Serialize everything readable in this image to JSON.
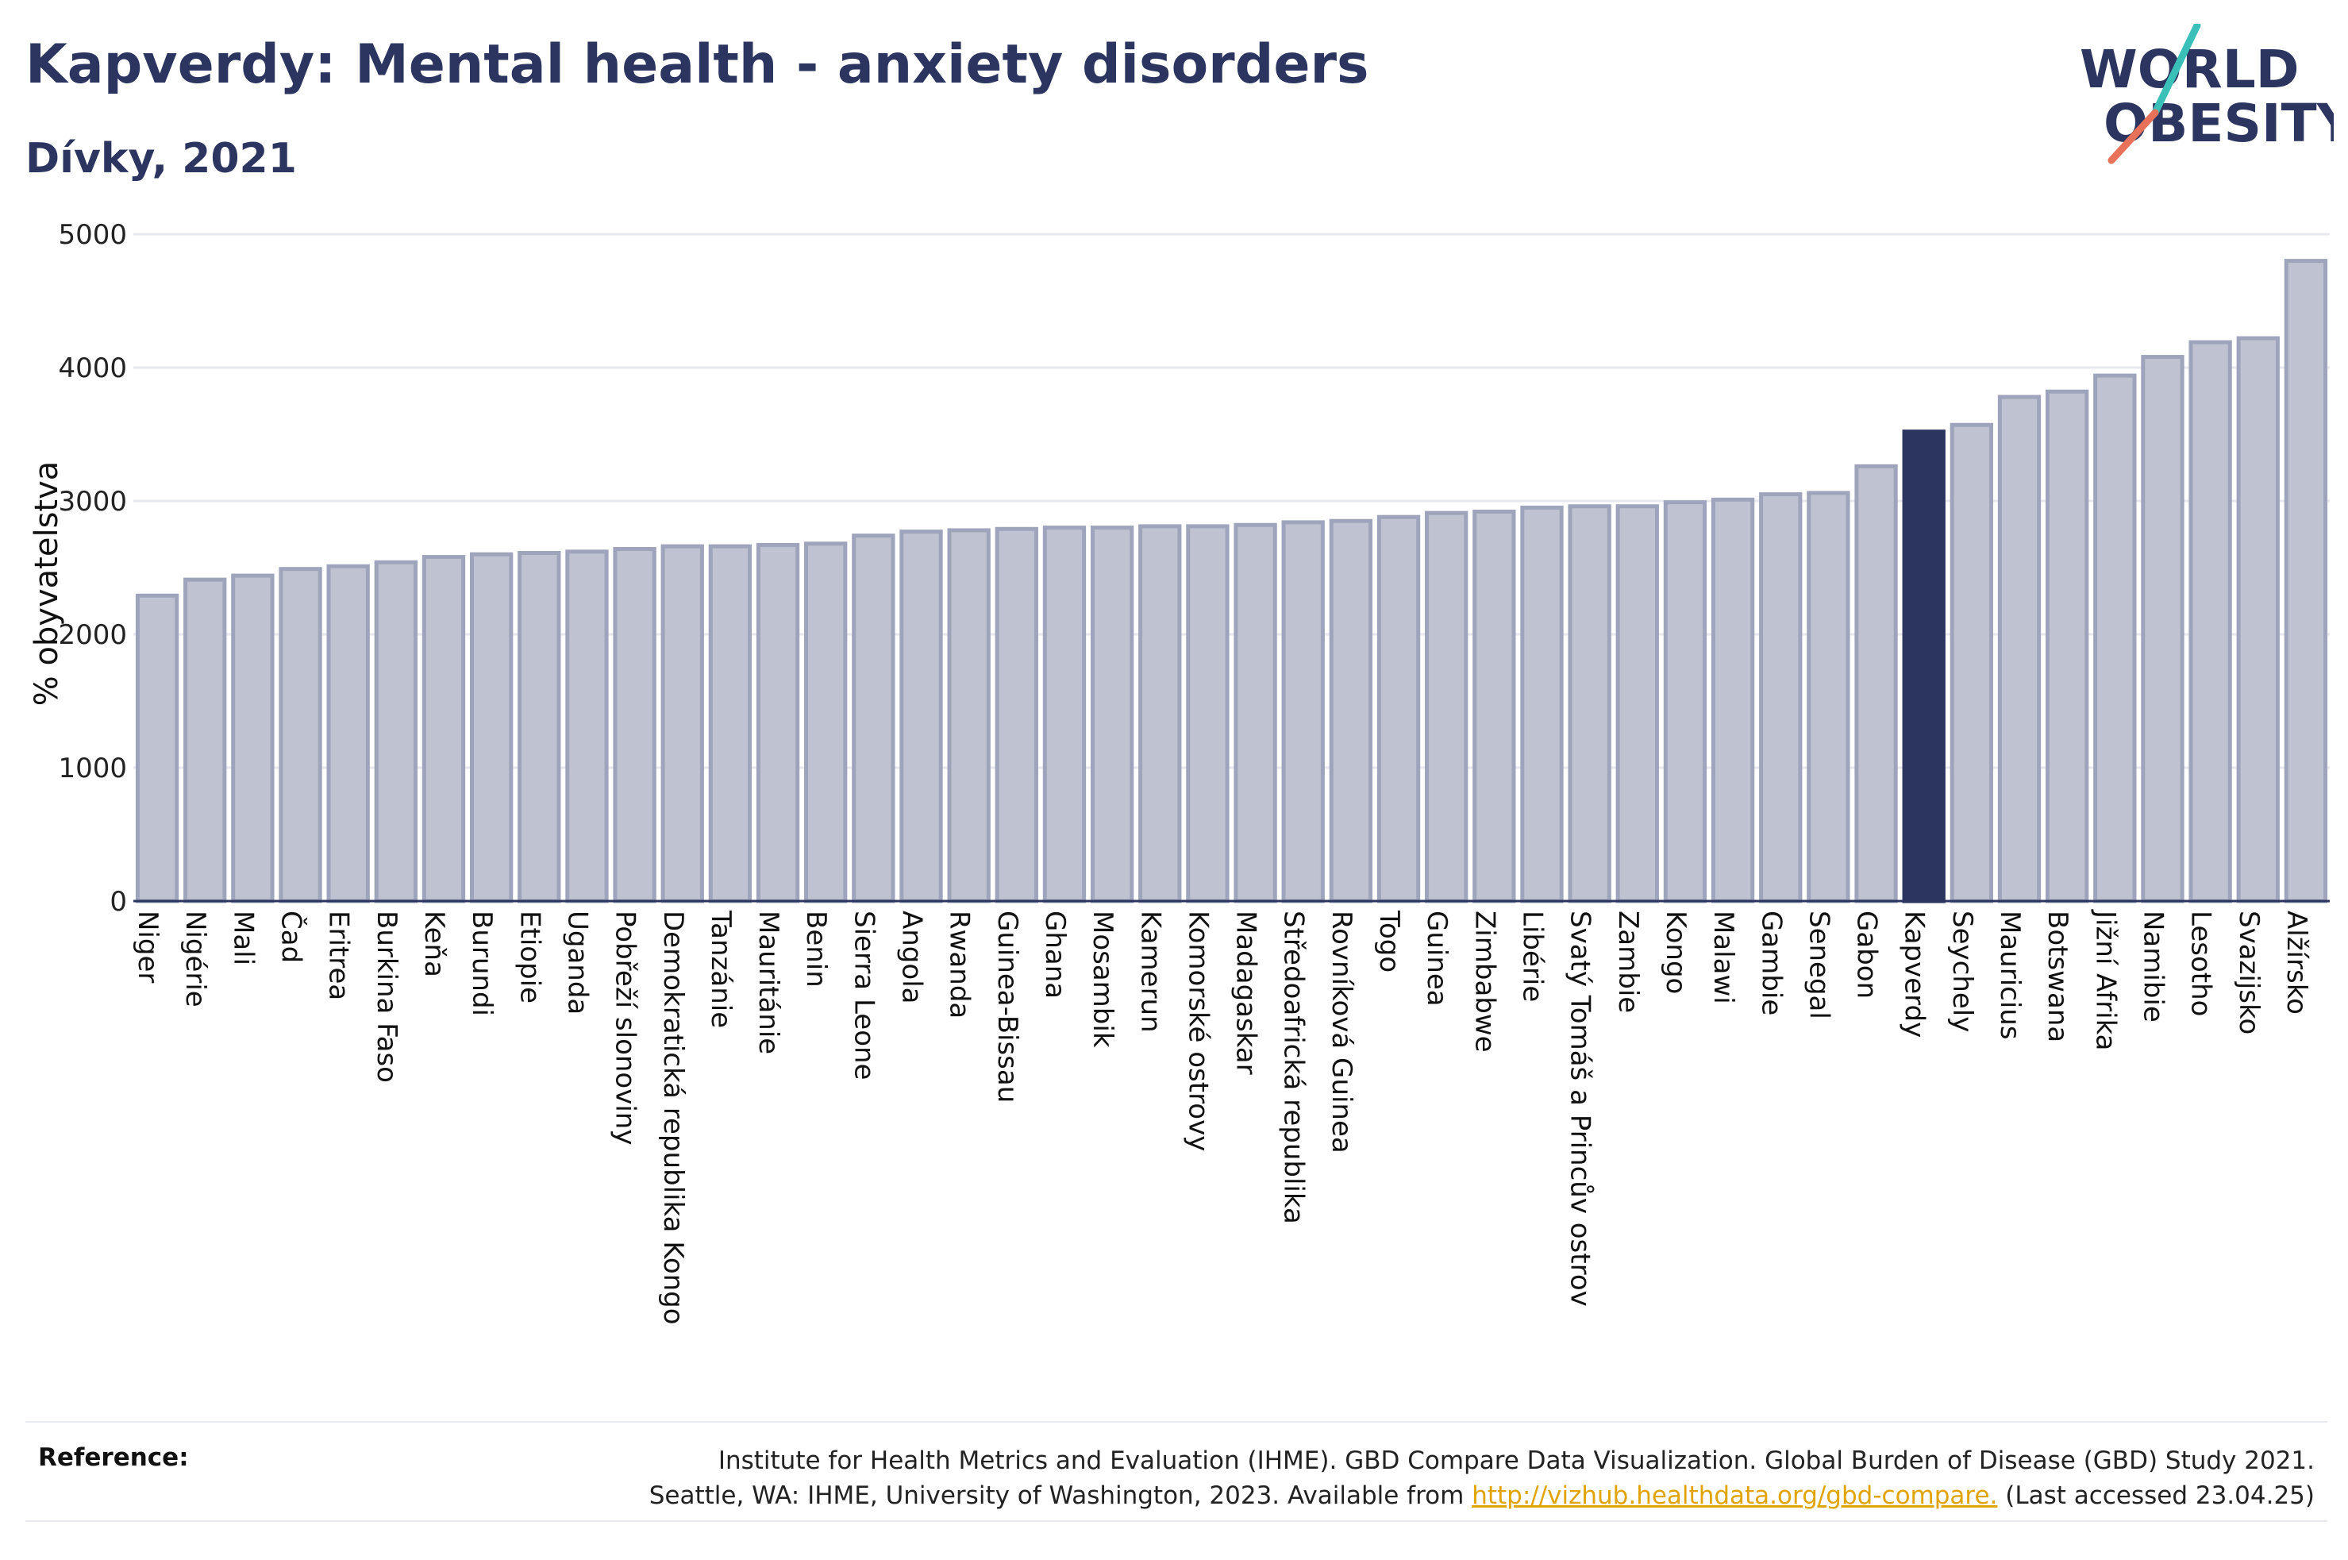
{
  "header": {
    "title": "Kapverdy: Mental health - anxiety disorders",
    "subtitle": "Dívky, 2021"
  },
  "logo": {
    "line1": "WORLD",
    "line2": "OBESITY",
    "icon": "world-obesity-logo",
    "accent_teal": "#3bbfb9",
    "accent_coral": "#e8715a"
  },
  "colors": {
    "bar": "#bfc3d1",
    "bar_stroke": "#9ea4bb",
    "highlight": "#2b3560",
    "text": "#2b3560"
  },
  "chart_data": {
    "type": "bar",
    "title": "Kapverdy: Mental health - anxiety disorders",
    "subtitle": "Dívky, 2021",
    "ylabel": "% obyvatelstva",
    "xlabel": "",
    "ylim": [
      0,
      5000
    ],
    "yticks": [
      0,
      1000,
      2000,
      3000,
      4000,
      5000
    ],
    "grid": true,
    "highlight": "Kapverdy",
    "categories": [
      "Niger",
      "Nigérie",
      "Mali",
      "Čad",
      "Eritrea",
      "Burkina Faso",
      "Keňa",
      "Burundi",
      "Etiopie",
      "Uganda",
      "Pobřeží slonoviny",
      "Demokratická republika Kongo",
      "Tanzánie",
      "Mauritánie",
      "Benin",
      "Sierra Leone",
      "Angola",
      "Rwanda",
      "Guinea-Bissau",
      "Ghana",
      "Mosambik",
      "Kamerun",
      "Komorské ostrovy",
      "Madagaskar",
      "Středoafrická republika",
      "Rovníková Guinea",
      "Togo",
      "Guinea",
      "Zimbabwe",
      "Libérie",
      "Svatý Tomáš a Princův ostrov",
      "Zambie",
      "Kongo",
      "Malawi",
      "Gambie",
      "Senegal",
      "Gabon",
      "Kapverdy",
      "Seychely",
      "Mauricius",
      "Botswana",
      "Jižní Afrika",
      "Namibie",
      "Lesotho",
      "Svazijsko",
      "Alžírsko"
    ],
    "values": [
      2290,
      2410,
      2440,
      2490,
      2510,
      2540,
      2580,
      2600,
      2610,
      2620,
      2640,
      2660,
      2660,
      2670,
      2680,
      2740,
      2770,
      2780,
      2790,
      2800,
      2800,
      2810,
      2810,
      2820,
      2840,
      2850,
      2880,
      2910,
      2920,
      2950,
      2960,
      2960,
      2990,
      3010,
      3050,
      3060,
      3260,
      3520,
      3570,
      3780,
      3820,
      3940,
      4080,
      4190,
      4220,
      4800
    ]
  },
  "footer": {
    "reference_label": "Reference:",
    "line1": "Institute for Health Metrics and Evaluation (IHME). GBD Compare Data Visualization. Global Burden of Disease (GBD) Study 2021.",
    "line2_prefix": "Seattle, WA: IHME, University of Washington, 2023. Available from ",
    "link": "http://vizhub.healthdata.org/gbd-compare.",
    "line2_suffix": " (Last accessed 23.04.25)"
  }
}
